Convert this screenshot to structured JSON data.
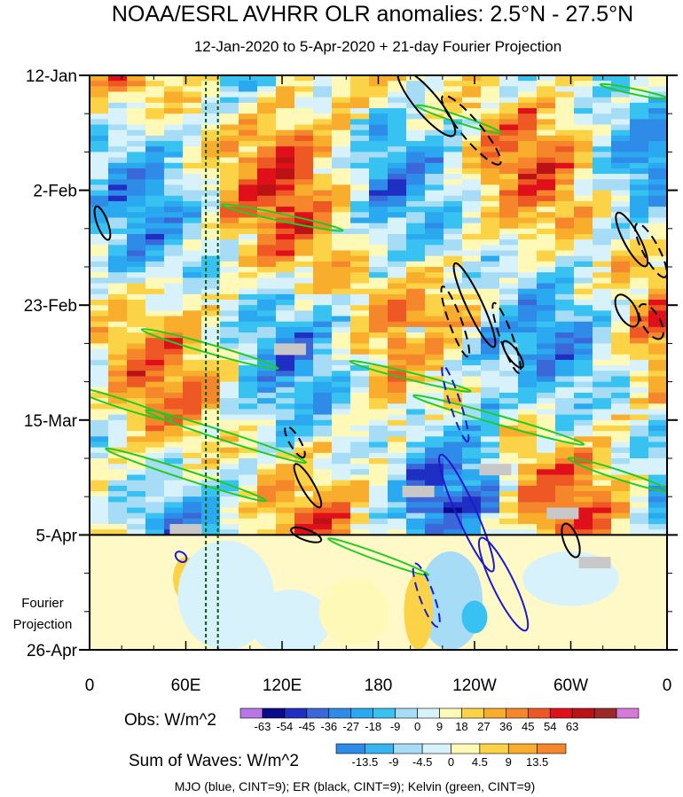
{
  "chart_data": {
    "type": "heatmap",
    "title": "NOAA/ESRL AVHRR OLR anomalies: 2.5°N - 27.5°N",
    "subtitle": "12-Jan-2020 to 5-Apr-2020 + 21-day Fourier Projection",
    "x_axis": {
      "ticks": [
        {
          "label": "0",
          "lon": 0
        },
        {
          "label": "60E",
          "lon": 60
        },
        {
          "label": "120E",
          "lon": 120
        },
        {
          "label": "180",
          "lon": 180
        },
        {
          "label": "120W",
          "lon": 240
        },
        {
          "label": "60W",
          "lon": 300
        },
        {
          "label": "0",
          "lon": 360
        }
      ],
      "range": [
        0,
        360
      ]
    },
    "y_axis": {
      "ticks": [
        {
          "label": "12-Jan",
          "day": 0
        },
        {
          "label": "2-Feb",
          "day": 21
        },
        {
          "label": "23-Feb",
          "day": 42
        },
        {
          "label": "15-Mar",
          "day": 63
        },
        {
          "label": "5-Apr",
          "day": 84
        },
        {
          "label": "26-Apr",
          "day": 105
        }
      ],
      "range": [
        0,
        105
      ],
      "reversed": true
    },
    "projection_label_line1": "Fourier",
    "projection_label_line2": "Projection",
    "projection_start_day": 84,
    "reference_lines_lon": [
      72.5,
      80
    ],
    "obs_colorbar": {
      "label": "Obs: W/m^2",
      "levels": [
        "-63",
        "-54",
        "-45",
        "-36",
        "-27",
        "-18",
        "-9",
        "0",
        "9",
        "18",
        "27",
        "36",
        "45",
        "54",
        "63"
      ],
      "colors": [
        "#b877e6",
        "#0a0a8a",
        "#1f2fc4",
        "#3a68d8",
        "#2e8ce8",
        "#2aa8f0",
        "#38c2f2",
        "#a6dcf5",
        "#d8f2fb",
        "#fff9b8",
        "#fcd346",
        "#f9ad2c",
        "#f5862b",
        "#ee5824",
        "#e0101a",
        "#bb1216",
        "#9c2a2a",
        "#d67ad9"
      ]
    },
    "waves_colorbar": {
      "label": "Sum of Waves: W/m^2",
      "levels": [
        "-13.5",
        "-9",
        "-4.5",
        "0",
        "4.5",
        "9",
        "13.5"
      ],
      "colors": [
        "#2e8ce8",
        "#38b4f2",
        "#a6dcf5",
        "#d8f2fb",
        "#fff9b8",
        "#fcd346",
        "#f9ad2c",
        "#f5862b"
      ]
    },
    "footnote": "MJO (blue, CINT=9); ER (black, CINT=9); Kelvin (green, CINT=9)",
    "series": [
      {
        "name": "MJO",
        "color": "#1a1ad2"
      },
      {
        "name": "ER",
        "color": "#000000"
      },
      {
        "name": "Kelvin",
        "color": "#22cc22"
      }
    ]
  }
}
